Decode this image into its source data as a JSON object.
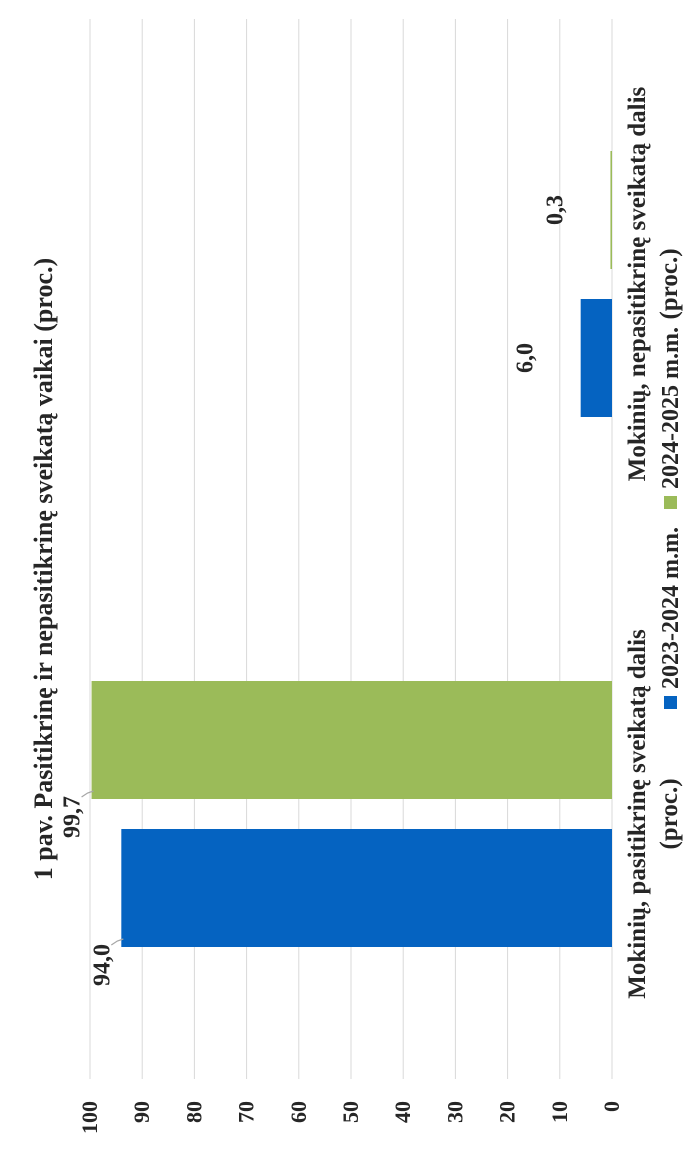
{
  "chart_data": {
    "type": "bar",
    "title": "1 pav. Pasitikrinę ir nepasitikrinę sveikatą vaikai (proc.)",
    "categories": [
      [
        "Mokinių, pasitikrinę sveikatą dalis",
        "(proc.)"
      ],
      [
        "Mokinių, nepasitikrinę sveikatą dalis",
        "(proc.)"
      ]
    ],
    "series": [
      {
        "name": "2023-2024 m.m.",
        "color": "#0563c1",
        "values": [
          94.0,
          6.0
        ],
        "labels": [
          "94,0",
          "6,0"
        ]
      },
      {
        "name": "2024-2025 m.m.",
        "color": "#9bbb59",
        "values": [
          99.7,
          0.3
        ],
        "labels": [
          "99,7",
          "0,3"
        ]
      }
    ],
    "ylim": [
      0,
      100
    ],
    "yticks": [
      "0",
      "10",
      "20",
      "30",
      "40",
      "50",
      "60",
      "70",
      "80",
      "90",
      "100"
    ],
    "grid": true,
    "legend_position": "bottom",
    "orientation": "rotated-90-ccw"
  }
}
